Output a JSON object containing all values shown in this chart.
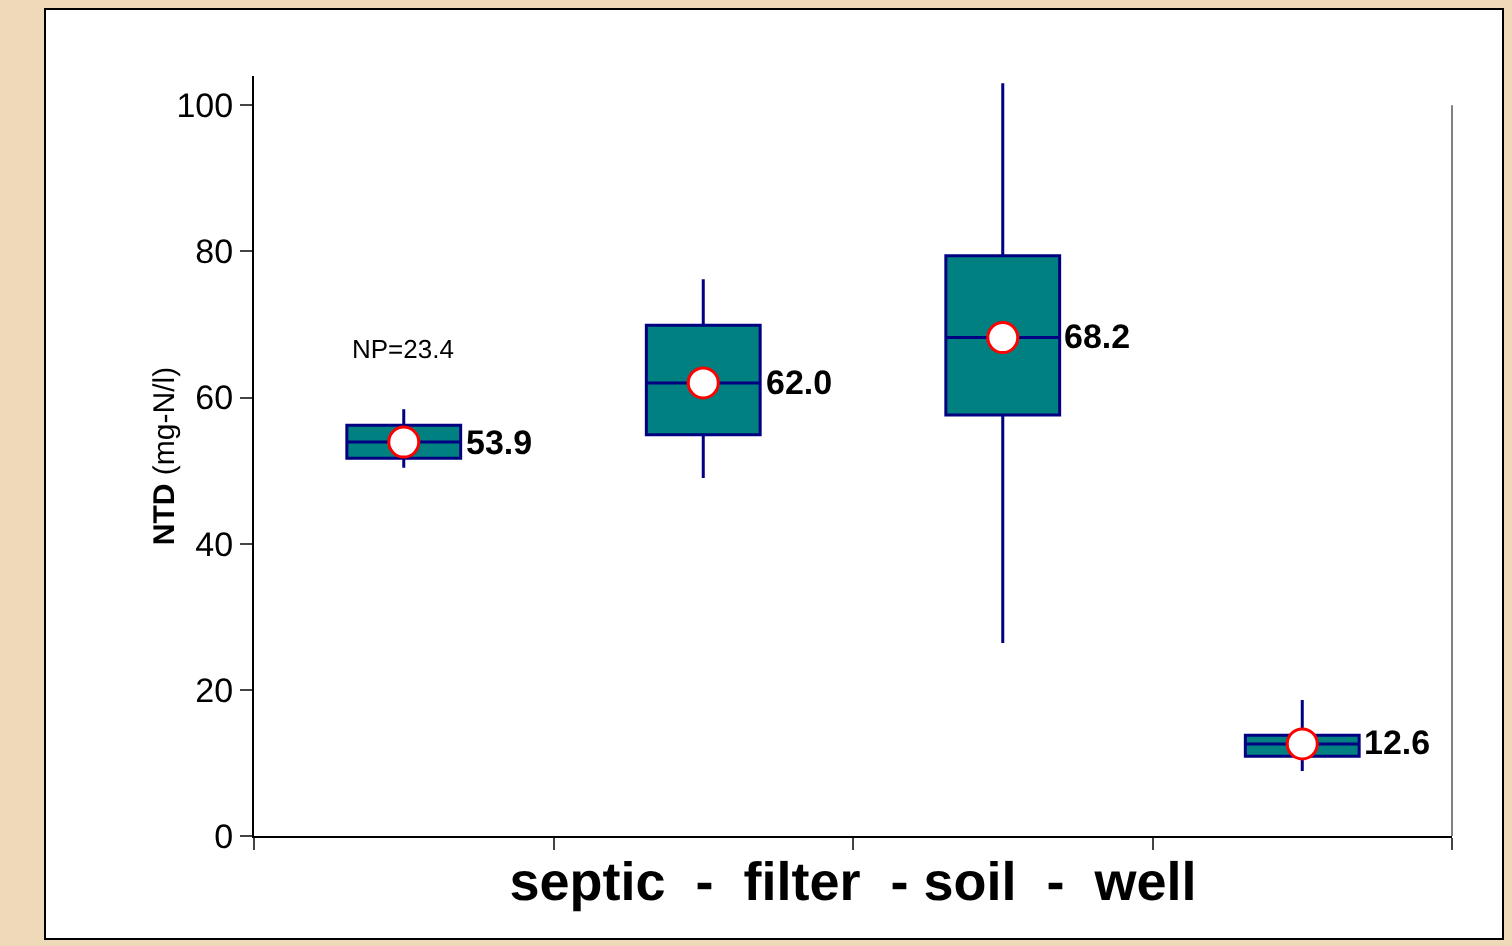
{
  "chart_data": {
    "type": "box",
    "xlabel": "septic  -  filter  - soil  -  well",
    "ylabel": "NTD (mg-N/l)",
    "categories": [
      null,
      null,
      null,
      null
    ],
    "boxes": [
      {
        "low": 50.4,
        "q1": 51.7,
        "median": 53.9,
        "q3": 56.2,
        "high": 58.4
      },
      {
        "low": 49.0,
        "q1": 54.9,
        "median": 62.0,
        "q3": 69.9,
        "high": 76.2
      },
      {
        "low": 26.4,
        "q1": 57.6,
        "median": 68.2,
        "q3": 79.4,
        "high": 103
      },
      {
        "low": 8.9,
        "q1": 10.9,
        "median": 12.6,
        "q3": 13.8,
        "high": 18.6
      }
    ],
    "color": "#008080",
    "series": [
      {
        "type": "scatter",
        "color": "#ff0000",
        "values": [
          53.9,
          62.0,
          68.2,
          12.6
        ],
        "value_labels": [
          "53.9",
          "62.0",
          "68.2",
          "12.6"
        ]
      }
    ],
    "marker": "circle",
    "annotations": [
      "NP=23.4"
    ],
    "ylim": [
      0,
      104
    ],
    "yticks": [
      0,
      20,
      40,
      60,
      80,
      100
    ],
    "grid": false
  }
}
